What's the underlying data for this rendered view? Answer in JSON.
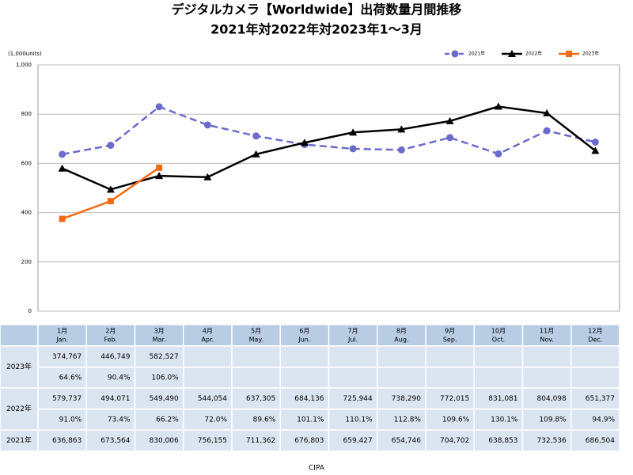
{
  "chart_data": {
    "type": "line",
    "title": "デジタルカメラ【Worldwide】出荷数量月間推移",
    "subtitle": "2021年対2022年対2023年1～3月",
    "y_label": "(1,000units)",
    "source": "CIPA",
    "categories": [
      "1月",
      "2月",
      "3月",
      "4月",
      "5月",
      "6月",
      "7月",
      "8月",
      "9月",
      "10月",
      "11月",
      "12月"
    ],
    "categories_en": [
      "Jan.",
      "Feb.",
      "Mar.",
      "Apr.",
      "May.",
      "Jun.",
      "Jul.",
      "Aug.",
      "Sep.",
      "Oct.",
      "Nov.",
      "Dec."
    ],
    "ylim": [
      0,
      1000
    ],
    "yticks": [
      0,
      200,
      400,
      600,
      800,
      {
        "value": 1000,
        "label": "1,000"
      }
    ],
    "grid": true,
    "legend": "top-right",
    "series": [
      {
        "name": "2021年",
        "color": "#6b6bcc",
        "marker": "circle",
        "dash": true,
        "values": [
          636.863,
          673.564,
          830.006,
          756.155,
          711.362,
          676.803,
          659.427,
          654.746,
          704.702,
          638.853,
          732.536,
          686.504
        ],
        "value_labels": [
          "636,863",
          "673,564",
          "830,006",
          "756,155",
          "711,362",
          "676,803",
          "659,427",
          "654,746",
          "704,702",
          "638,853",
          "732,536",
          "686,504"
        ]
      },
      {
        "name": "2022年",
        "color": "#000000",
        "marker": "triangle",
        "dash": false,
        "values": [
          579.737,
          494.071,
          549.49,
          544.054,
          637.305,
          684.136,
          725.944,
          738.29,
          772.015,
          831.081,
          804.098,
          651.377
        ],
        "value_labels": [
          "579,737",
          "494,071",
          "549,490",
          "544,054",
          "637,305",
          "684,136",
          "725,944",
          "738,290",
          "772,015",
          "831,081",
          "804,098",
          "651,377"
        ]
      },
      {
        "name": "2023年",
        "color": "#f26b12",
        "marker": "square",
        "dash": false,
        "values": [
          374.767,
          446.749,
          582.527,
          null,
          null,
          null,
          null,
          null,
          null,
          null,
          null,
          null
        ],
        "value_labels": [
          "374,767",
          "446,749",
          "582,527",
          null,
          null,
          null,
          null,
          null,
          null,
          null,
          null,
          null
        ]
      }
    ]
  },
  "table": {
    "yoy_2023": [
      "64.6%",
      "90.4%",
      "106.0%",
      null,
      null,
      null,
      null,
      null,
      null,
      null,
      null,
      null
    ],
    "yoy_2022": [
      "91.0%",
      "73.4%",
      "66.2%",
      "72.0%",
      "89.6%",
      "101.1%",
      "110.1%",
      "112.8%",
      "109.6%",
      "130.1%",
      "109.8%",
      "94.9%"
    ]
  }
}
